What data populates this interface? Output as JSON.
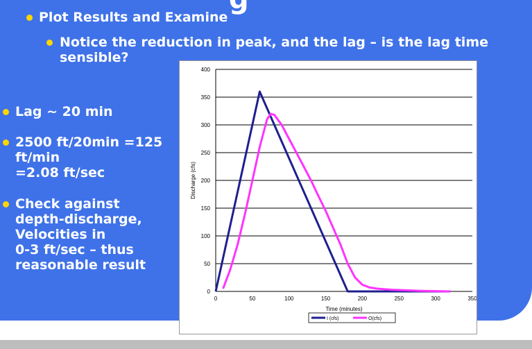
{
  "slide": {
    "title_fragment": "g",
    "bullets": [
      {
        "text": "Plot Results and Examine"
      },
      {
        "text": "Notice the reduction in peak, and the lag – is the lag time\nsensible?"
      },
      {
        "text": "Lag ~ 20 min"
      },
      {
        "text": "2500 ft/20min =125\nft/min\n=2.08 ft/sec"
      },
      {
        "text": "Check against\ndepth-discharge,\nVelocities in\n0-3 ft/sec – thus\nreasonable result"
      }
    ],
    "colors": {
      "background": "#3f72e8",
      "bullet_dot": "#ffd600",
      "text": "#ffffff"
    }
  },
  "chart_data": {
    "type": "line",
    "xlabel": "Time (minutes)",
    "ylabel": "Discharge (cfs)",
    "xlim": [
      0,
      350
    ],
    "ylim": [
      0,
      400
    ],
    "xticks": [
      0,
      50,
      100,
      150,
      200,
      250,
      300,
      350
    ],
    "yticks": [
      0,
      50,
      100,
      150,
      200,
      250,
      300,
      350,
      400
    ],
    "grid": "horizontal",
    "legend_position": "bottom",
    "series": [
      {
        "name": "I (cfs)",
        "color": "#1f1f8f",
        "x": [
          0,
          60,
          180,
          320
        ],
        "y": [
          0,
          360,
          0,
          0
        ]
      },
      {
        "name": "O(cfs)",
        "color": "#ff33ff",
        "x": [
          10,
          20,
          30,
          40,
          50,
          60,
          70,
          75,
          80,
          90,
          100,
          110,
          120,
          130,
          140,
          150,
          160,
          170,
          180,
          190,
          200,
          210,
          220,
          240,
          260,
          280,
          300,
          320
        ],
        "y": [
          5,
          40,
          85,
          140,
          200,
          260,
          310,
          320,
          318,
          300,
          275,
          250,
          225,
          200,
          172,
          145,
          115,
          85,
          50,
          25,
          12,
          7,
          5,
          3,
          2,
          1,
          0.5,
          0
        ]
      }
    ]
  }
}
